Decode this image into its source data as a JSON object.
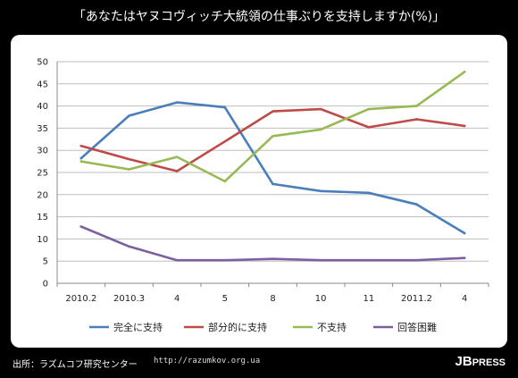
{
  "title": "「あなたはヤヌコヴィッチ大統領の仕事ぶりを支持しますか(%)」",
  "source_label": "出所：ラズムコフ研究センター",
  "source_url": "http://razumkov.org.ua",
  "brand": {
    "main": "JB",
    "rest": "PRESS"
  },
  "chart_data": {
    "type": "line",
    "title": "「あなたはヤヌコヴィッチ大統領の仕事ぶりを支持しますか(%)」",
    "categories": [
      "2010.2",
      "2010.3",
      "4",
      "5",
      "8",
      "10",
      "11",
      "2011.2",
      "4"
    ],
    "ylim": [
      0,
      50
    ],
    "yticks": [
      0,
      5,
      10,
      15,
      20,
      25,
      30,
      35,
      40,
      45,
      50
    ],
    "grid": true,
    "legend_position": "bottom",
    "series": [
      {
        "name": "完全に支持",
        "color": "#4a7ebb",
        "values": [
          28.2,
          37.8,
          40.8,
          39.7,
          22.4,
          20.8,
          20.4,
          17.8,
          11.3
        ]
      },
      {
        "name": "部分的に支持",
        "color": "#be4b48",
        "values": [
          31.0,
          28.0,
          25.3,
          32.0,
          38.8,
          39.3,
          35.2,
          37.0,
          35.5
        ]
      },
      {
        "name": "不支持",
        "color": "#98b954",
        "values": [
          27.5,
          25.7,
          28.5,
          23.0,
          33.2,
          34.7,
          39.3,
          40.0,
          47.7
        ]
      },
      {
        "name": "回答困難",
        "color": "#7d60a0",
        "values": [
          12.8,
          8.3,
          5.2,
          5.2,
          5.5,
          5.2,
          5.2,
          5.2,
          5.7
        ]
      }
    ]
  }
}
